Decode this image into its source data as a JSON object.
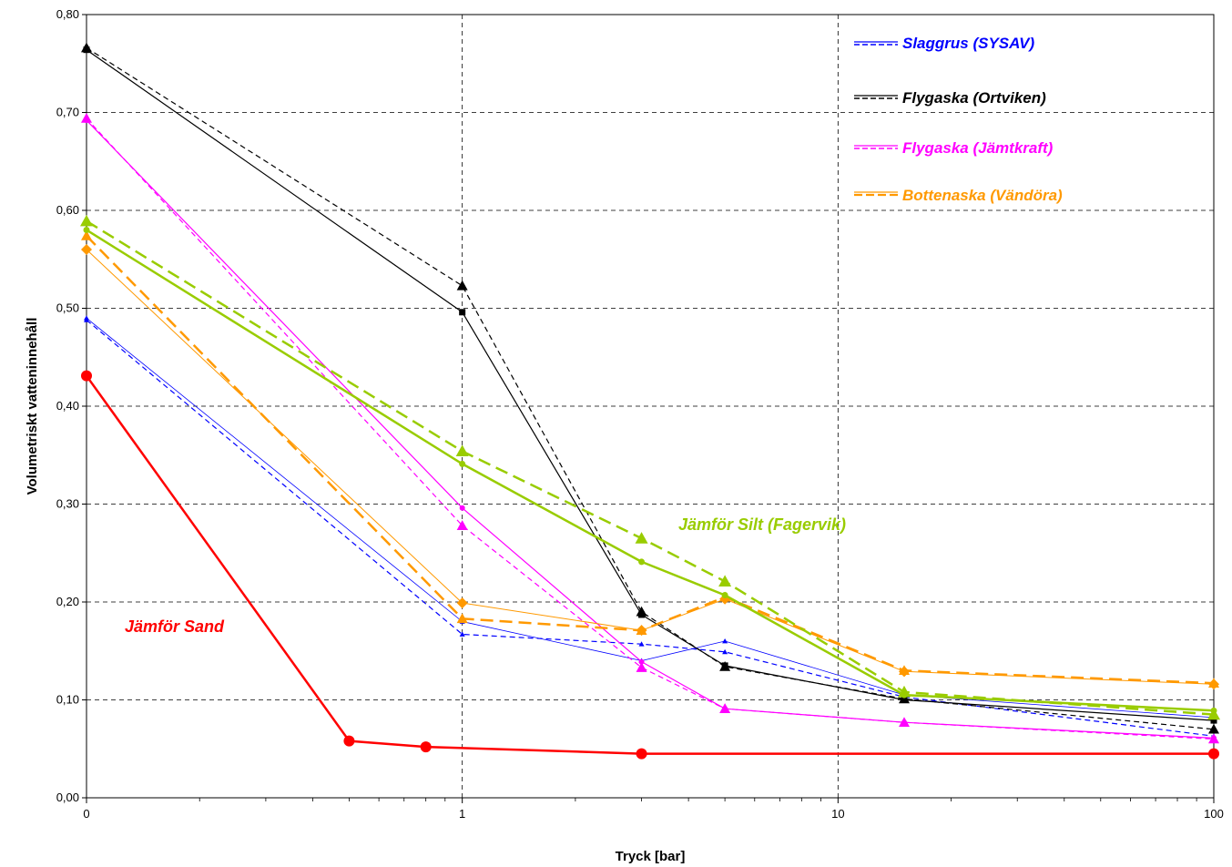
{
  "chart_data": {
    "type": "line",
    "xlabel": "Tryck [bar]",
    "ylabel": "Volumetriskt vatteninnehåll",
    "x_scale": "log",
    "xlim": [
      0.1,
      100
    ],
    "ylim": [
      0,
      0.8
    ],
    "x_tick_values": [
      0.1,
      1,
      10,
      100
    ],
    "x_tick_labels": [
      "0",
      "1",
      "10",
      "100"
    ],
    "y_tick_values": [
      0,
      0.1,
      0.2,
      0.3,
      0.4,
      0.5,
      0.6,
      0.7,
      0.8
    ],
    "y_tick_labels": [
      "0,00",
      "0,10",
      "0,20",
      "0,30",
      "0,40",
      "0,50",
      "0,60",
      "0,70",
      "0,80"
    ],
    "grid": true,
    "legend_position": "top-right",
    "legend": [
      {
        "name": "Slaggrus (SYSAV)",
        "color": "#0000ff"
      },
      {
        "name": "Flygaska (Ortviken)",
        "color": "#000000"
      },
      {
        "name": "Flygaska (Jämtkraft)",
        "color": "#ff00ff"
      },
      {
        "name": "Bottenaska (Vändöra)",
        "color": "#ff9900"
      }
    ],
    "annotations": [
      {
        "text": "Jämför Silt (Fagervik)",
        "color": "#99cc00"
      },
      {
        "text": "Jämför Sand",
        "color": "#ff0000"
      }
    ],
    "series": [
      {
        "group": "Slaggrus (SYSAV)",
        "color": "#0000ff",
        "style": "solid",
        "width": 0.8,
        "marker": "triangle",
        "marker_size": 3,
        "x": [
          0.1,
          1,
          3,
          5,
          15,
          100
        ],
        "y": [
          0.49,
          0.18,
          0.14,
          0.16,
          0.105,
          0.082
        ]
      },
      {
        "group": "Slaggrus (SYSAV)",
        "color": "#0000ff",
        "style": "dashed",
        "width": 1.2,
        "marker": "triangle",
        "marker_size": 3,
        "x": [
          0.1,
          1,
          3,
          5,
          15,
          100
        ],
        "y": [
          0.488,
          0.167,
          0.157,
          0.149,
          0.103,
          0.063
        ]
      },
      {
        "group": "Flygaska (Ortviken)",
        "color": "#000000",
        "style": "solid",
        "width": 1.2,
        "marker": "square",
        "marker_size": 3.5,
        "x": [
          0.1,
          1,
          3,
          5,
          15,
          100
        ],
        "y": [
          0.764,
          0.496,
          0.187,
          0.135,
          0.1,
          0.079
        ]
      },
      {
        "group": "Flygaska (Ortviken)",
        "color": "#000000",
        "style": "dashed",
        "width": 1.2,
        "marker": "triangle",
        "marker_size": 6,
        "x": [
          0.1,
          1,
          3,
          5,
          15,
          100
        ],
        "y": [
          0.766,
          0.523,
          0.19,
          0.134,
          0.101,
          0.07
        ]
      },
      {
        "group": "Flygaska (Jämtkraft)",
        "color": "#ff00ff",
        "style": "solid",
        "width": 1.2,
        "marker": "circle",
        "marker_size": 3,
        "x": [
          0.1,
          1,
          3,
          5,
          15,
          100
        ],
        "y": [
          0.692,
          0.296,
          0.139,
          0.091,
          0.077,
          0.061
        ]
      },
      {
        "group": "Flygaska (Jämtkraft)",
        "color": "#ff00ff",
        "style": "dashed",
        "width": 1.2,
        "marker": "triangle",
        "marker_size": 6,
        "x": [
          0.1,
          1,
          3,
          5,
          15,
          100
        ],
        "y": [
          0.694,
          0.278,
          0.133,
          0.091,
          0.077,
          0.06
        ]
      },
      {
        "group": "Bottenaska (Vändöra)",
        "color": "#ff9900",
        "style": "solid",
        "width": 1,
        "marker": "diamond",
        "marker_size": 6,
        "x": [
          0.1,
          1,
          3,
          5,
          15,
          100
        ],
        "y": [
          0.56,
          0.199,
          0.171,
          0.203,
          0.129,
          0.116
        ]
      },
      {
        "group": "Bottenaska (Vändöra)",
        "color": "#ff9900",
        "style": "dashed",
        "width": 2.5,
        "marker": "triangle",
        "marker_size": 6,
        "x": [
          0.1,
          1,
          3,
          5,
          15,
          100
        ],
        "y": [
          0.574,
          0.183,
          0.171,
          0.205,
          0.13,
          0.117
        ]
      },
      {
        "group": "Jämför Silt (Fagervik)",
        "color": "#99cc00",
        "style": "solid",
        "width": 2.5,
        "marker": "circle",
        "marker_size": 3.5,
        "x": [
          0.1,
          1,
          3,
          5,
          15,
          100
        ],
        "y": [
          0.58,
          0.341,
          0.241,
          0.207,
          0.105,
          0.089
        ]
      },
      {
        "group": "Jämför Silt (Fagervik)",
        "color": "#99cc00",
        "style": "dashed",
        "width": 2.5,
        "marker": "triangle",
        "marker_size": 7,
        "x": [
          0.1,
          1,
          3,
          5,
          15,
          100
        ],
        "y": [
          0.589,
          0.354,
          0.265,
          0.221,
          0.108,
          0.085
        ]
      },
      {
        "group": "Jämför Sand",
        "color": "#ff0000",
        "style": "solid",
        "width": 2.5,
        "marker": "circle",
        "marker_size": 6,
        "x": [
          0.1,
          0.5,
          0.8,
          3,
          100
        ],
        "y": [
          0.431,
          0.058,
          0.052,
          0.045,
          0.045
        ]
      }
    ]
  }
}
